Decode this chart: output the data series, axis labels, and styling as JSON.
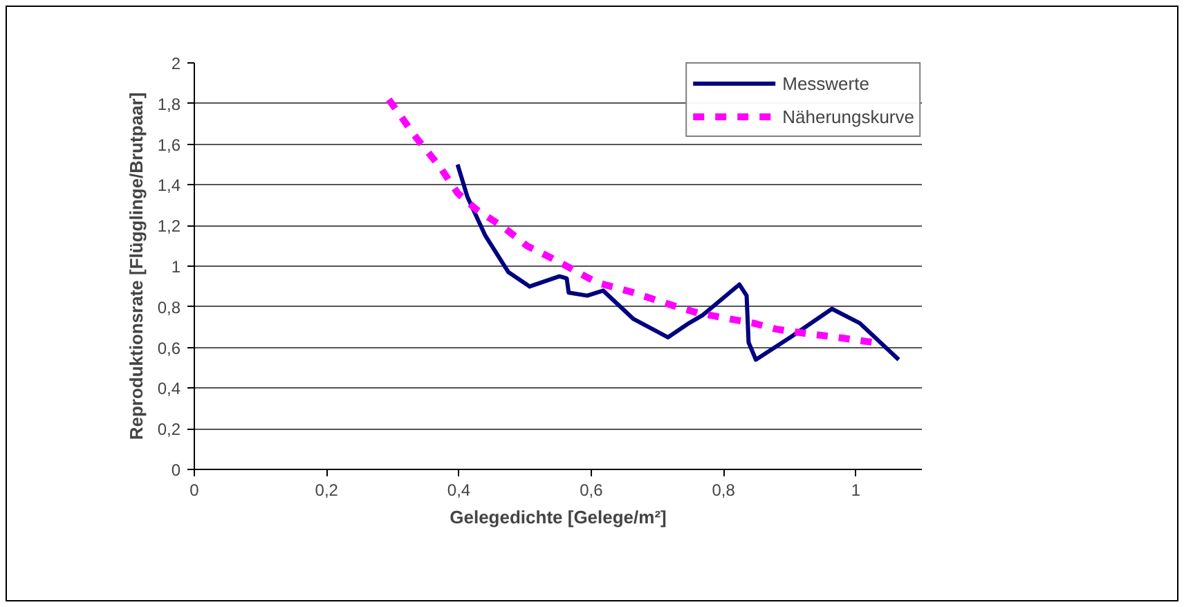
{
  "chart_data": {
    "type": "line",
    "xlabel": "Gelegedichte [Gelege/m²]",
    "ylabel": "Reproduktionsrate [Flügglinge/Brutpaar]",
    "xlim": [
      0,
      1.1
    ],
    "xticks": [
      0,
      {
        "value": 0.2,
        "label": "0,2"
      },
      {
        "value": 0.4,
        "label": "0,4"
      },
      {
        "value": 0.6,
        "label": "0,6"
      },
      {
        "value": 0.8,
        "label": "0,8"
      },
      1
    ],
    "ylim": [
      0,
      2
    ],
    "yticks": [
      0,
      {
        "value": 0.2,
        "label": "0,2"
      },
      {
        "value": 0.4,
        "label": "0,4"
      },
      {
        "value": 0.6,
        "label": "0,6"
      },
      {
        "value": 0.8,
        "label": "0,8"
      },
      1,
      {
        "value": 1.2,
        "label": "1,2"
      },
      {
        "value": 1.4,
        "label": "1,4"
      },
      {
        "value": 1.6,
        "label": "1,6"
      },
      {
        "value": 1.8,
        "label": "1,8"
      },
      2
    ],
    "grid": "y",
    "legend": "top right",
    "series": [
      {
        "name": "Messwerte",
        "color": "#000080",
        "line_style": "solid",
        "x": [
          0.398,
          0.413,
          0.44,
          0.475,
          0.507,
          0.552,
          0.563,
          0.566,
          0.594,
          0.618,
          0.664,
          0.716,
          0.748,
          0.769,
          0.824,
          0.835,
          0.838,
          0.849,
          0.901,
          0.964,
          1.006,
          1.065
        ],
        "values": [
          1.5,
          1.34,
          1.15,
          0.97,
          0.9,
          0.95,
          0.94,
          0.87,
          0.855,
          0.88,
          0.74,
          0.65,
          0.72,
          0.76,
          0.91,
          0.855,
          0.625,
          0.54,
          0.65,
          0.79,
          0.72,
          0.54
        ]
      },
      {
        "name": "Näherungskurve",
        "color": "#ff00ff",
        "line_style": "dashed",
        "x": [
          0.294,
          0.336,
          0.371,
          0.398,
          0.426,
          0.468,
          0.503,
          0.552,
          0.608,
          0.664,
          0.72,
          0.761,
          0.81,
          0.845,
          0.88,
          0.922,
          0.971,
          1.027
        ],
        "values": [
          1.82,
          1.63,
          1.49,
          1.36,
          1.28,
          1.19,
          1.1,
          1.02,
          0.92,
          0.87,
          0.81,
          0.77,
          0.74,
          0.72,
          0.69,
          0.67,
          0.65,
          0.625
        ]
      }
    ]
  }
}
